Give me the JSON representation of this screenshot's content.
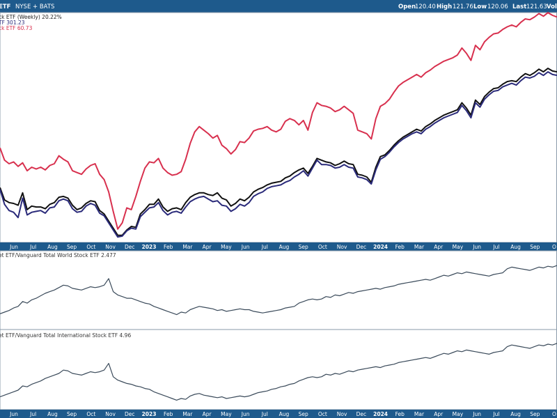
{
  "header": {
    "symbol_text": "ETF",
    "exchange_text": "NYSE + BATS",
    "open_label": "Open",
    "open_value": "120.40",
    "high_label": "High",
    "high_value": "121.76",
    "low_label": "Low",
    "low_value": "120.06",
    "last_label": "Last",
    "last_value": "121.63",
    "volume_label": "Volu"
  },
  "legend": {
    "line1": "ck ETF (Weekly) 20.22%",
    "line2": "TF 301.23",
    "line3": "ck ETF 60.73"
  },
  "panels": {
    "ratio1_label": "et ETF/Vanguard Total World Stock ETF 2.477",
    "ratio2_label": "et ETF/Vanguard Total International Stock ETF 4.96"
  },
  "axis": {
    "ticks": [
      {
        "label": "Jun",
        "year": false
      },
      {
        "label": "Jul",
        "year": false
      },
      {
        "label": "Aug",
        "year": false
      },
      {
        "label": "Sep",
        "year": false
      },
      {
        "label": "Oct",
        "year": false
      },
      {
        "label": "Nov",
        "year": false
      },
      {
        "label": "Dec",
        "year": false
      },
      {
        "label": "2023",
        "year": true
      },
      {
        "label": "Feb",
        "year": false
      },
      {
        "label": "Mar",
        "year": false
      },
      {
        "label": "Apr",
        "year": false
      },
      {
        "label": "May",
        "year": false
      },
      {
        "label": "Jun",
        "year": false
      },
      {
        "label": "Jul",
        "year": false
      },
      {
        "label": "Aug",
        "year": false
      },
      {
        "label": "Sep",
        "year": false
      },
      {
        "label": "Oct",
        "year": false
      },
      {
        "label": "Nov",
        "year": false
      },
      {
        "label": "Dec",
        "year": false
      },
      {
        "label": "2024",
        "year": true
      },
      {
        "label": "Feb",
        "year": false
      },
      {
        "label": "Mar",
        "year": false
      },
      {
        "label": "Apr",
        "year": false
      },
      {
        "label": "May",
        "year": false
      },
      {
        "label": "Jun",
        "year": false
      },
      {
        "label": "Jul",
        "year": false
      },
      {
        "label": "Aug",
        "year": false
      },
      {
        "label": "Sep",
        "year": false
      },
      {
        "label": "O",
        "year": false
      }
    ]
  },
  "colors": {
    "header_bg": "#1e5a8c",
    "axis_bar_bg": "#1e5a8c",
    "series_black": "#111111",
    "series_navy": "#2a2a7a",
    "series_red": "#d8304e",
    "ratio_line": "#3a4a5a",
    "panel_border": "#8a9aaa"
  },
  "chart_data": [
    {
      "type": "line",
      "panel": "price",
      "x_start": "2022-05-13",
      "x_step_days": 7,
      "series": [
        {
          "color": "#111111",
          "values": [
            55,
            41,
            38,
            37,
            35,
            49,
            30,
            34,
            33,
            33,
            31,
            36,
            38,
            44,
            45,
            43,
            35,
            30,
            32,
            37,
            40,
            39,
            29,
            25,
            17,
            9,
            1,
            1,
            7,
            11,
            10,
            25,
            30,
            36,
            36,
            42,
            33,
            28,
            31,
            32,
            30,
            38,
            44,
            47,
            49,
            49,
            47,
            46,
            49,
            43,
            41,
            34,
            37,
            42,
            40,
            44,
            50,
            53,
            55,
            58,
            60,
            61,
            62,
            66,
            68,
            72,
            75,
            77,
            71,
            79,
            88,
            86,
            84,
            83,
            80,
            82,
            85,
            82,
            81,
            70,
            69,
            67,
            61,
            78,
            90,
            92,
            97,
            103,
            108,
            112,
            115,
            118,
            121,
            119,
            124,
            127,
            131,
            134,
            137,
            139,
            141,
            143,
            151,
            145,
            137,
            154,
            149,
            158,
            163,
            167,
            168,
            172,
            175,
            176,
            175,
            180,
            184,
            182,
            185,
            189,
            186,
            190,
            187,
            186
          ]
        },
        {
          "color": "#2a2a7a",
          "values": [
            53,
            36,
            29,
            27,
            21,
            43,
            24,
            27,
            28,
            29,
            26,
            32,
            33,
            40,
            42,
            40,
            31,
            27,
            28,
            34,
            37,
            35,
            26,
            23,
            15,
            7,
            -1,
            0,
            6,
            9,
            8,
            22,
            27,
            32,
            33,
            38,
            29,
            24,
            27,
            28,
            26,
            33,
            39,
            42,
            44,
            45,
            42,
            39,
            40,
            35,
            34,
            28,
            31,
            36,
            34,
            38,
            45,
            48,
            50,
            54,
            56,
            57,
            58,
            61,
            63,
            67,
            70,
            74,
            68,
            77,
            86,
            81,
            81,
            80,
            77,
            78,
            81,
            78,
            77,
            67,
            66,
            64,
            59,
            75,
            87,
            90,
            95,
            101,
            106,
            110,
            113,
            116,
            118,
            116,
            121,
            124,
            128,
            131,
            134,
            136,
            138,
            140,
            148,
            142,
            134,
            151,
            146,
            155,
            160,
            164,
            165,
            169,
            171,
            173,
            171,
            176,
            180,
            179,
            181,
            185,
            182,
            186,
            183,
            182
          ]
        },
        {
          "color": "#d8304e",
          "values": [
            100,
            86,
            82,
            84,
            79,
            83,
            74,
            78,
            76,
            78,
            75,
            80,
            82,
            91,
            87,
            84,
            74,
            72,
            70,
            76,
            80,
            82,
            70,
            64,
            50,
            28,
            8,
            15,
            32,
            30,
            45,
            62,
            77,
            84,
            83,
            88,
            77,
            72,
            69,
            70,
            73,
            87,
            105,
            118,
            124,
            120,
            116,
            111,
            114,
            103,
            99,
            93,
            98,
            107,
            106,
            111,
            119,
            121,
            122,
            124,
            120,
            118,
            121,
            130,
            133,
            131,
            126,
            131,
            120,
            140,
            151,
            148,
            147,
            145,
            141,
            143,
            147,
            143,
            139,
            120,
            118,
            116,
            110,
            133,
            147,
            150,
            155,
            163,
            170,
            174,
            177,
            180,
            183,
            180,
            185,
            188,
            192,
            195,
            198,
            200,
            202,
            205,
            213,
            207,
            199,
            216,
            211,
            220,
            225,
            229,
            230,
            234,
            237,
            239,
            237,
            242,
            246,
            245,
            248,
            252,
            249,
            253,
            250,
            248
          ]
        }
      ],
      "ylim": [
        -4,
        250
      ]
    },
    {
      "type": "line",
      "panel": "ratio-world",
      "x_start": "2022-05-13",
      "x_step_days": 7,
      "series": [
        {
          "color": "#3a4a5a",
          "values": [
            15,
            17,
            19,
            22,
            24,
            30,
            28,
            32,
            34,
            37,
            40,
            42,
            44,
            47,
            50,
            49,
            46,
            45,
            44,
            46,
            48,
            47,
            48,
            50,
            58,
            42,
            38,
            36,
            34,
            34,
            32,
            30,
            28,
            27,
            24,
            22,
            20,
            18,
            16,
            14,
            17,
            16,
            20,
            22,
            24,
            23,
            22,
            21,
            19,
            20,
            18,
            19,
            20,
            21,
            20,
            20,
            18,
            17,
            16,
            17,
            18,
            19,
            20,
            22,
            23,
            24,
            28,
            30,
            32,
            33,
            32,
            33,
            36,
            35,
            38,
            37,
            39,
            41,
            40,
            42,
            43,
            44,
            45,
            46,
            45,
            47,
            48,
            49,
            51,
            52,
            53,
            54,
            55,
            56,
            57,
            56,
            58,
            60,
            62,
            61,
            63,
            65,
            64,
            66,
            65,
            64,
            63,
            62,
            61,
            63,
            64,
            65,
            70,
            72,
            71,
            70,
            69,
            68,
            70,
            72,
            71,
            73,
            72,
            74
          ]
        }
      ],
      "ylim": [
        0,
        80
      ]
    },
    {
      "type": "line",
      "panel": "ratio-international",
      "x_start": "2022-05-13",
      "x_step_days": 7,
      "series": [
        {
          "color": "#3a4a5a",
          "values": [
            12,
            14,
            16,
            18,
            20,
            25,
            24,
            27,
            29,
            31,
            34,
            36,
            38,
            40,
            44,
            43,
            40,
            39,
            38,
            40,
            42,
            41,
            42,
            44,
            52,
            36,
            32,
            30,
            28,
            27,
            25,
            24,
            22,
            21,
            18,
            16,
            14,
            12,
            10,
            8,
            10,
            9,
            13,
            15,
            16,
            14,
            13,
            12,
            11,
            12,
            10,
            11,
            12,
            13,
            12,
            13,
            15,
            17,
            18,
            19,
            21,
            22,
            24,
            25,
            27,
            28,
            31,
            33,
            35,
            36,
            35,
            36,
            39,
            38,
            40,
            39,
            41,
            43,
            42,
            44,
            45,
            46,
            47,
            48,
            47,
            49,
            50,
            51,
            53,
            54,
            55,
            56,
            57,
            58,
            59,
            58,
            60,
            62,
            64,
            63,
            65,
            67,
            66,
            68,
            67,
            66,
            65,
            64,
            63,
            65,
            66,
            67,
            72,
            74,
            73,
            72,
            71,
            70,
            72,
            74,
            73,
            75,
            74,
            76
          ]
        }
      ],
      "ylim": [
        0,
        80
      ]
    }
  ]
}
